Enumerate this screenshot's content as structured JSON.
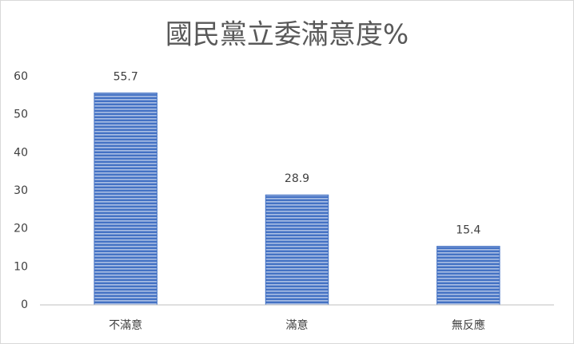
{
  "chart_data": {
    "type": "bar",
    "title": "國民黨立委滿意度%",
    "categories": [
      "不滿意",
      "滿意",
      "無反應"
    ],
    "values": [
      55.7,
      28.9,
      15.4
    ],
    "color": "#4472c4",
    "ylim": [
      0,
      60
    ],
    "yticks": [
      0,
      10,
      20,
      30,
      40,
      50,
      60
    ],
    "grid": false
  }
}
